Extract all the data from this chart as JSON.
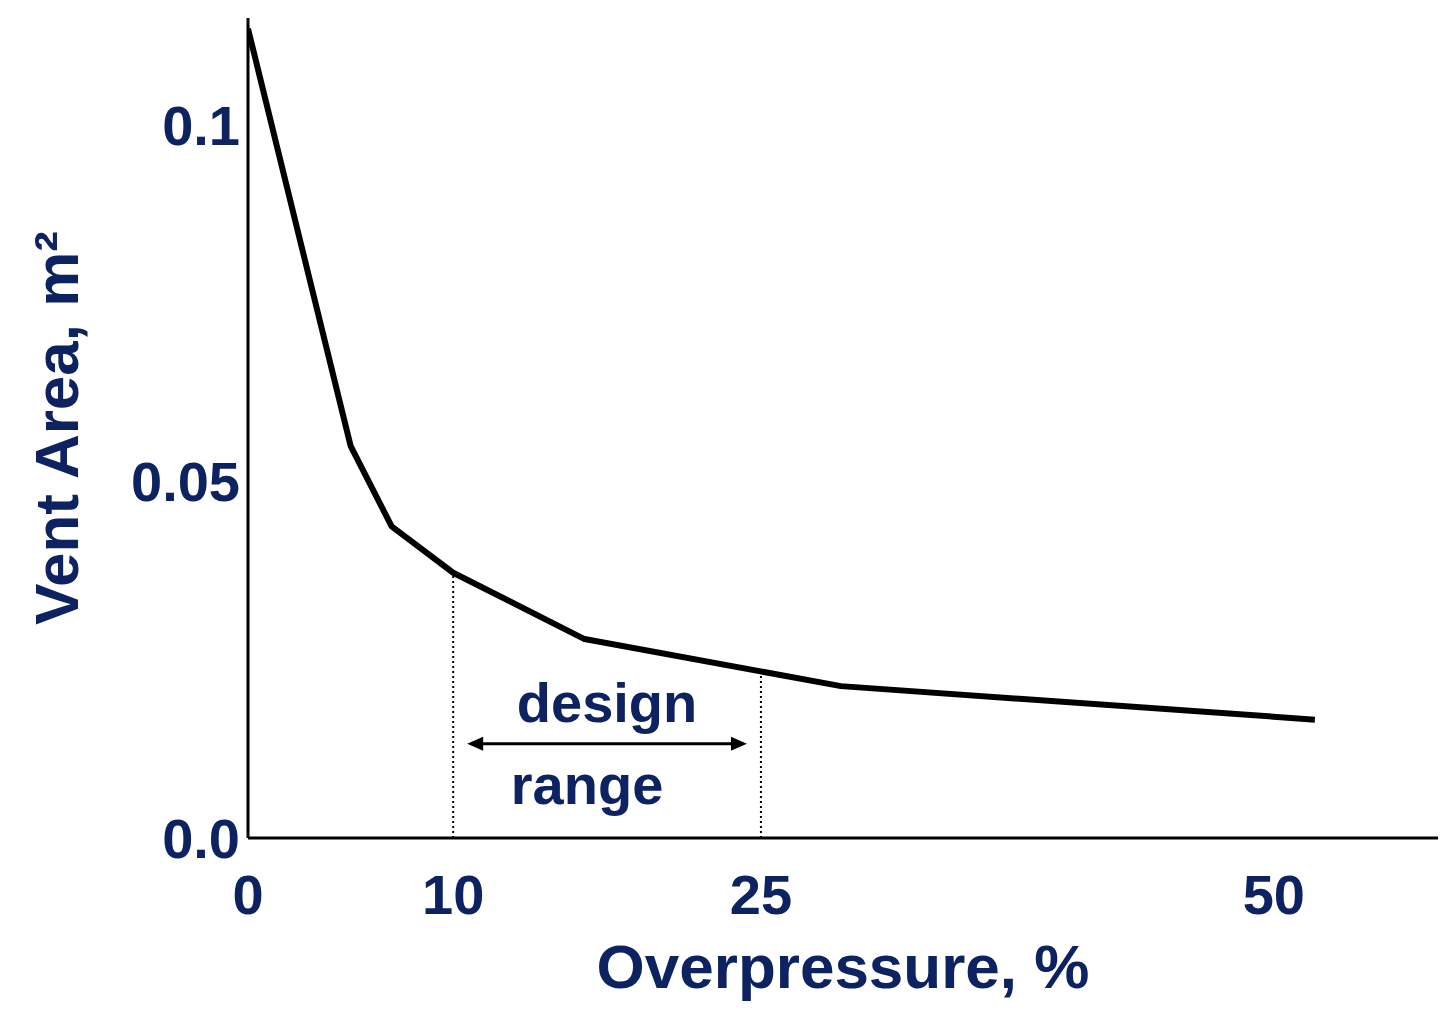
{
  "chart_data": {
    "type": "line",
    "xlabel": "Overpressure, %",
    "ylabel": "Vent Area, m²",
    "x": [
      0,
      5,
      7,
      10,
      16.4,
      28.9,
      52
    ],
    "series": [
      {
        "color": "#000000",
        "values": [
          0.1135,
          0.055,
          0.0437,
          0.0372,
          0.0279,
          0.0213,
          0.0166
        ]
      }
    ],
    "xlim": [
      0,
      58
    ],
    "xticks": [
      0,
      10,
      25,
      50
    ],
    "ylim": [
      0,
      0.115
    ],
    "yticks": [
      {
        "value": 0,
        "label": "0.0"
      },
      0.05,
      0.1
    ],
    "grid": false,
    "legend": false,
    "marker": "none",
    "line_style": "solid",
    "ref_lines": [
      {
        "axis": "x",
        "value": 10,
        "line_style": "dotted",
        "color": "#000000"
      },
      {
        "axis": "x",
        "value": 25,
        "line_style": "dotted",
        "color": "#000000"
      }
    ],
    "annotations": [
      "design range"
    ]
  }
}
